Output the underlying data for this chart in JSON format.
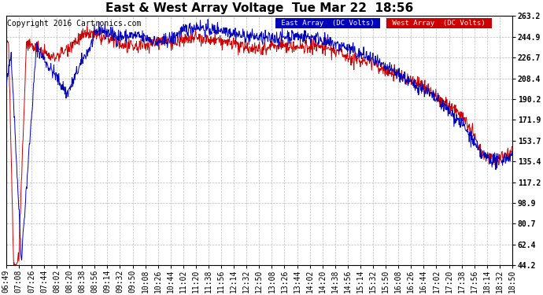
{
  "title": "East & West Array Voltage  Tue Mar 22  18:56",
  "copyright": "Copyright 2016 Cartronics.com",
  "legend_east": "East Array  (DC Volts)",
  "legend_west": "West Array  (DC Volts)",
  "east_color": "#0000bb",
  "west_color": "#cc0000",
  "legend_east_bg": "#0000bb",
  "legend_west_bg": "#cc0000",
  "background_color": "#ffffff",
  "plot_bg_color": "#ffffff",
  "grid_color": "#bbbbbb",
  "ylim_min": 44.2,
  "ylim_max": 263.2,
  "yticks": [
    44.2,
    62.4,
    80.7,
    98.9,
    117.2,
    135.4,
    153.7,
    171.9,
    190.2,
    208.4,
    226.7,
    244.9,
    263.2
  ],
  "x_labels": [
    "06:49",
    "07:08",
    "07:26",
    "07:44",
    "08:02",
    "08:20",
    "08:38",
    "08:56",
    "09:14",
    "09:32",
    "09:50",
    "10:08",
    "10:26",
    "10:44",
    "11:02",
    "11:20",
    "11:38",
    "11:56",
    "12:14",
    "12:32",
    "12:50",
    "13:08",
    "13:26",
    "13:44",
    "14:02",
    "14:20",
    "14:38",
    "14:56",
    "15:14",
    "15:32",
    "15:50",
    "16:08",
    "16:26",
    "16:44",
    "17:02",
    "17:20",
    "17:38",
    "17:56",
    "18:14",
    "18:32",
    "18:50"
  ],
  "title_fontsize": 11,
  "axis_fontsize": 7,
  "copyright_fontsize": 7
}
